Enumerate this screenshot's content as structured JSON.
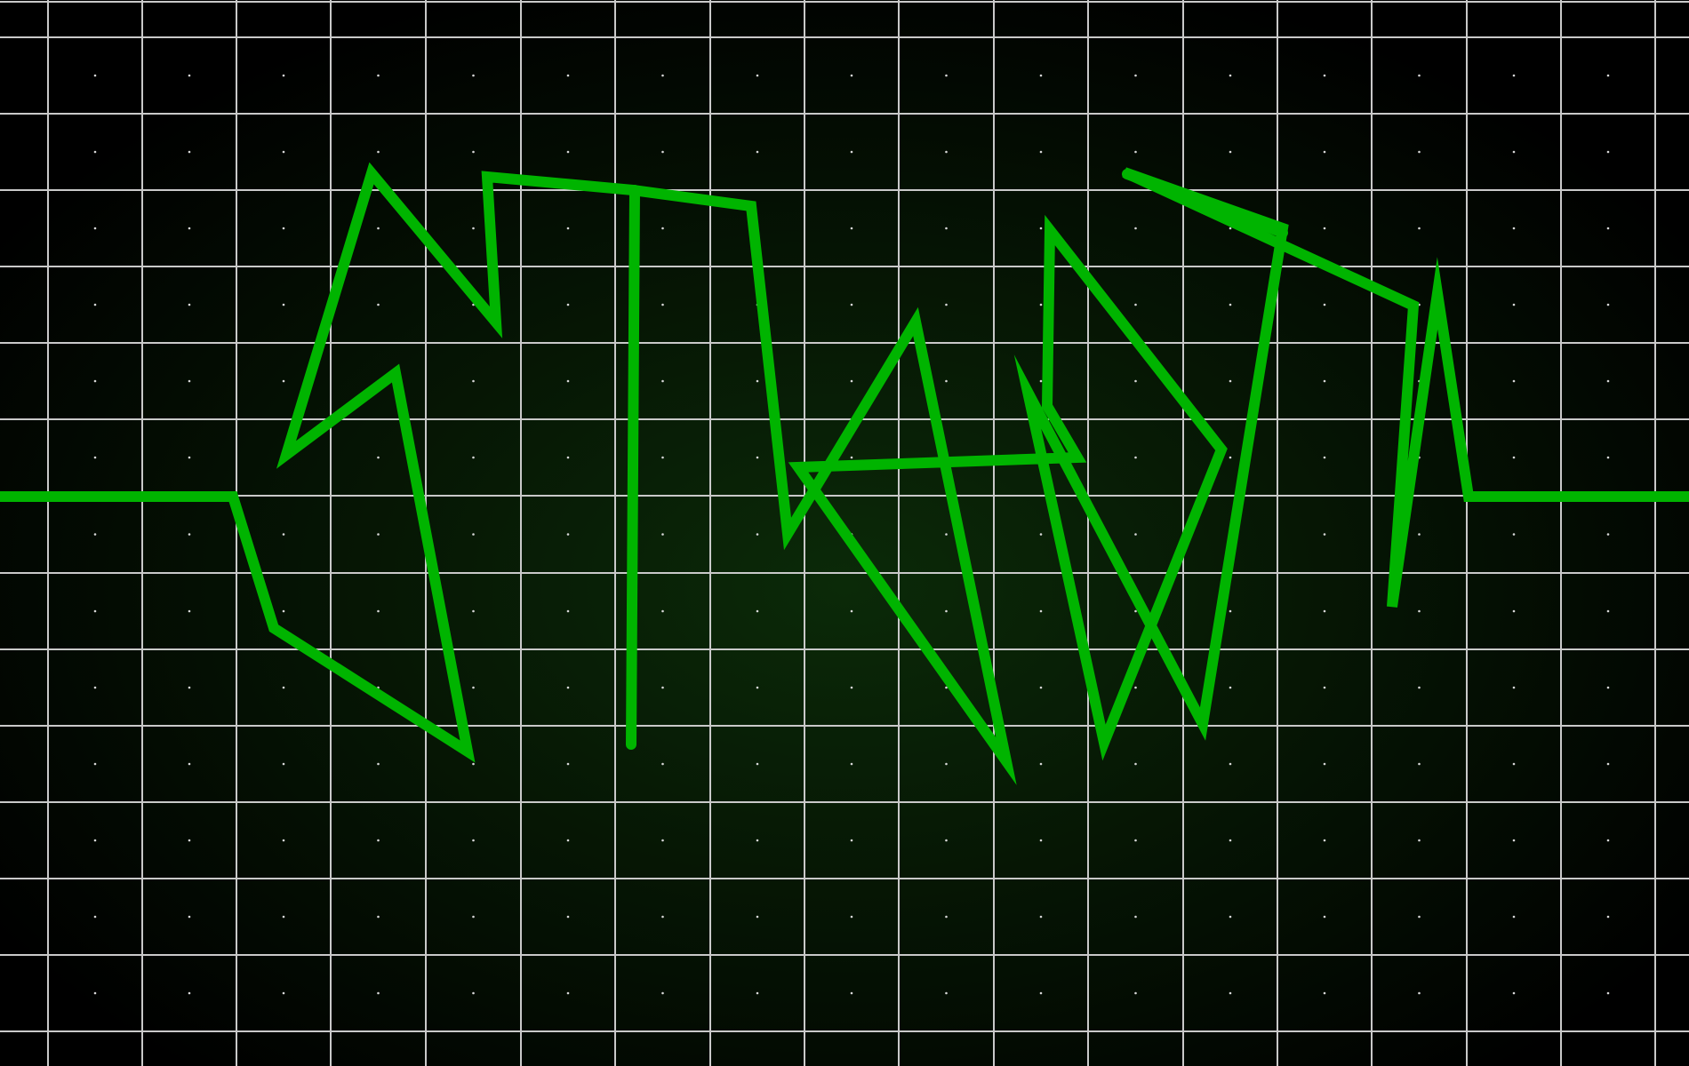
{
  "colors": {
    "background_center": "#0b2a08",
    "background_edge": "#000000",
    "grid_line": "#c9c9c9",
    "grid_dot": "#d8d8d8",
    "trace": "#00b400"
  },
  "display": {
    "type": "oscilloscope-style squiggle drawing on a grid",
    "grid": true,
    "grid_dots": true
  }
}
